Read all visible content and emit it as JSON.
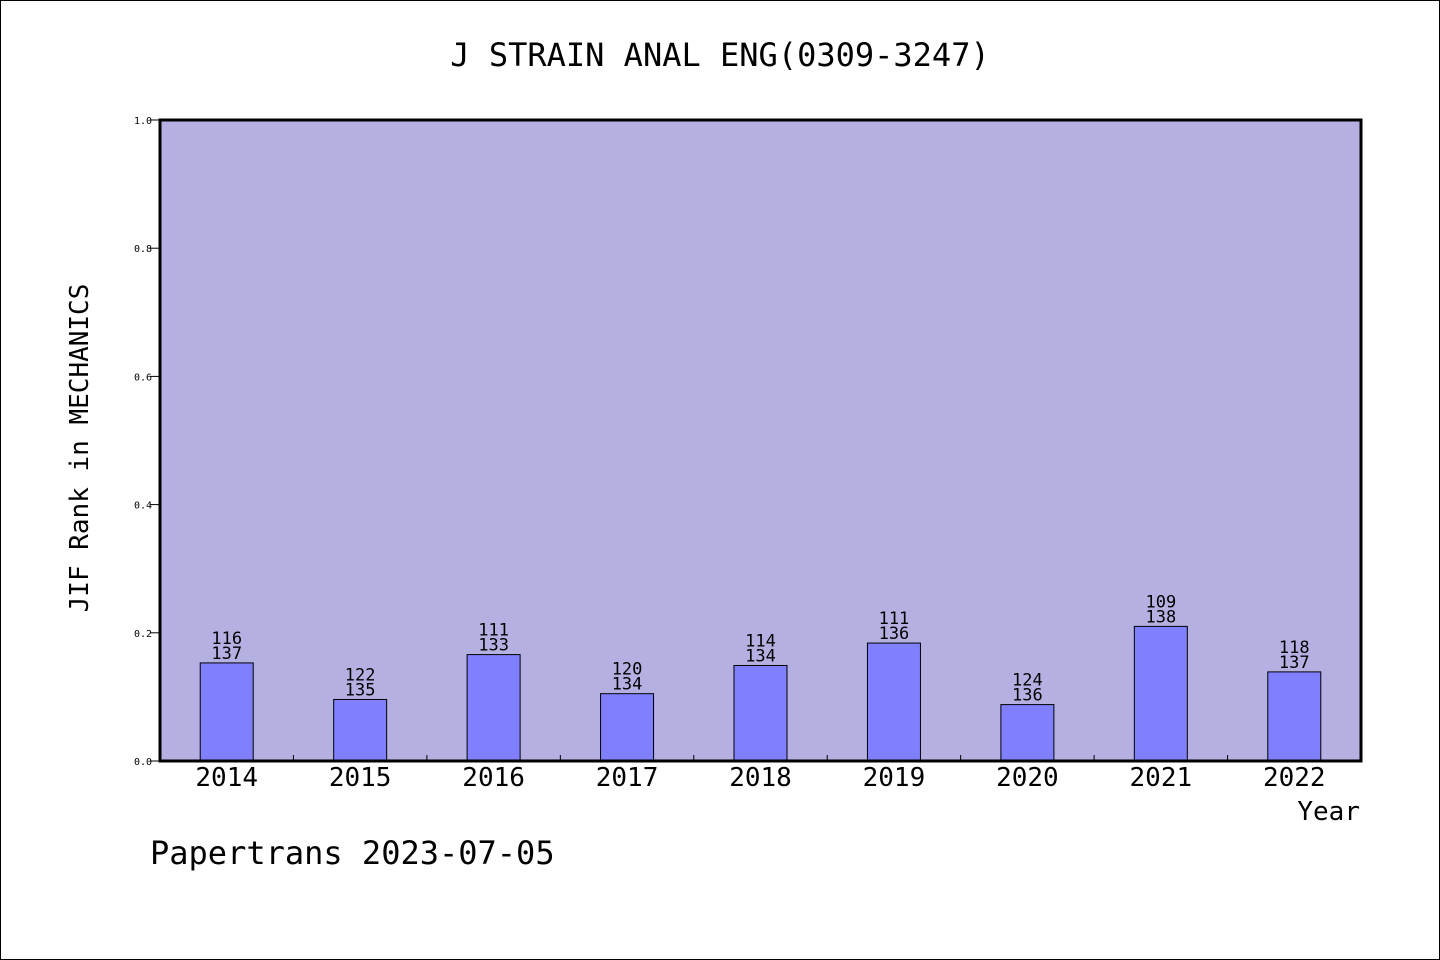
{
  "chart_data": {
    "type": "bar",
    "title": "J STRAIN ANAL ENG(0309-3247)",
    "xlabel": "Year",
    "ylabel": "JIF Rank in MECHANICS",
    "ylim": [
      0,
      1.0
    ],
    "yticks": [
      "0.0",
      "0.2",
      "0.4",
      "0.6",
      "0.8",
      "1.0"
    ],
    "categories": [
      "2014",
      "2015",
      "2016",
      "2017",
      "2018",
      "2019",
      "2020",
      "2021",
      "2022"
    ],
    "values": [
      0.153,
      0.096,
      0.166,
      0.105,
      0.149,
      0.184,
      0.088,
      0.21,
      0.139
    ],
    "ranks": [
      "116",
      "122",
      "111",
      "120",
      "114",
      "111",
      "124",
      "109",
      "118"
    ],
    "totals": [
      "137",
      "135",
      "133",
      "134",
      "134",
      "136",
      "136",
      "138",
      "137"
    ],
    "grid": false,
    "colors": {
      "plot_background": "#b5b0e2",
      "bar_fill": "#8080ff",
      "bar_stroke": "#000000",
      "frame": "#000000"
    }
  },
  "footer": {
    "credit": "Papertrans 2023-07-05"
  }
}
